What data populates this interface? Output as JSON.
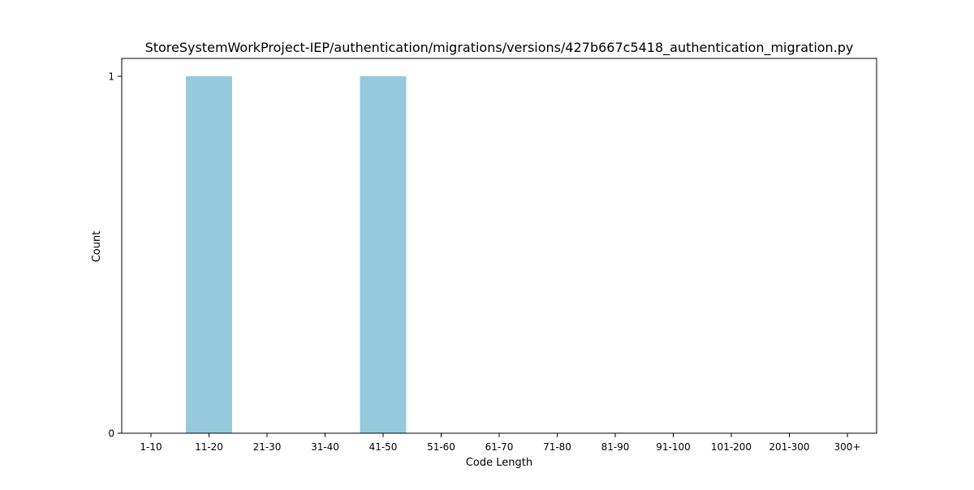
{
  "chart_data": {
    "type": "bar",
    "title": "StoreSystemWorkProject-IEP/authentication/migrations/versions/427b667c5418_authentication_migration.py",
    "xlabel": "Code Length",
    "ylabel": "Count",
    "categories": [
      "1-10",
      "11-20",
      "21-30",
      "31-40",
      "41-50",
      "51-60",
      "61-70",
      "71-80",
      "81-90",
      "91-100",
      "101-200",
      "201-300",
      "300+"
    ],
    "values": [
      0,
      1,
      0,
      0,
      1,
      0,
      0,
      0,
      0,
      0,
      0,
      0,
      0
    ],
    "ylim": [
      0,
      1
    ],
    "yticks": [
      0,
      1
    ],
    "bar_color": "#96c9dc",
    "grid": false,
    "legend": "none"
  }
}
